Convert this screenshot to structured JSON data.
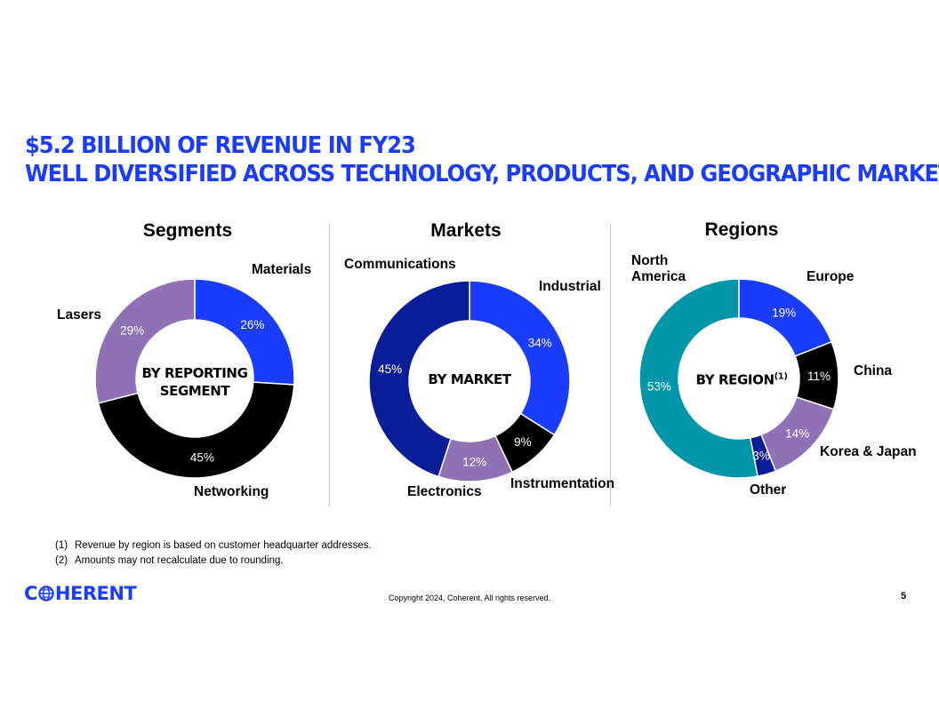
{
  "header": {
    "title_line1": "$5.2 BILLION OF REVENUE IN FY23",
    "title_line2": "WELL DIVERSIFIED ACROSS TECHNOLOGY, PRODUCTS, AND GEOGRAPHIC MARKETS"
  },
  "colors": {
    "brand_blue": "#1a3cff",
    "black": "#000000",
    "purple": "#8f72b5",
    "navy": "#0a1d99",
    "teal": "#0096a9"
  },
  "chart_data": [
    {
      "type": "pie",
      "title": "Segments",
      "center_label_line1": "BY REPORTING",
      "center_label_line2": "SEGMENT",
      "slices": [
        {
          "name": "Materials",
          "value": 26,
          "label": "26%",
          "color": "#1a3cff",
          "text_color": "#ffffff"
        },
        {
          "name": "Networking",
          "value": 45,
          "label": "45%",
          "color": "#000000",
          "text_color": "#ffffff"
        },
        {
          "name": "Lasers",
          "value": 29,
          "label": "29%",
          "color": "#8f72b5",
          "text_color": "#ffffff"
        }
      ]
    },
    {
      "type": "pie",
      "title": "Markets",
      "center_label_line1": "BY MARKET",
      "slices": [
        {
          "name": "Industrial",
          "value": 34,
          "label": "34%",
          "color": "#1a3cff",
          "text_color": "#ffffff"
        },
        {
          "name": "Instrumentation",
          "value": 9,
          "label": "9%",
          "color": "#000000",
          "text_color": "#ffffff"
        },
        {
          "name": "Electronics",
          "value": 12,
          "label": "12%",
          "color": "#8f72b5",
          "text_color": "#ffffff"
        },
        {
          "name": "Communications",
          "value": 45,
          "label": "45%",
          "color": "#0a1d99",
          "text_color": "#ffffff"
        }
      ]
    },
    {
      "type": "pie",
      "title": "Regions",
      "center_label_line1": "BY REGION",
      "center_label_sup": "(1)",
      "slices": [
        {
          "name": "Europe",
          "value": 19,
          "label": "19%",
          "color": "#1a3cff",
          "text_color": "#ffffff"
        },
        {
          "name": "China",
          "value": 11,
          "label": "11%",
          "color": "#000000",
          "text_color": "#ffffff"
        },
        {
          "name": "Korea & Japan",
          "value": 14,
          "label": "14%",
          "color": "#8f72b5",
          "text_color": "#ffffff"
        },
        {
          "name": "Other",
          "value": 3,
          "label": "3%",
          "color": "#0a1d99",
          "text_color": "#ffffff"
        },
        {
          "name": "North America",
          "value": 53,
          "label": "53%",
          "color": "#0096a9",
          "text_color": "#ffffff"
        }
      ]
    }
  ],
  "labels": {
    "materials": "Materials",
    "lasers": "Lasers",
    "networking": "Networking",
    "communications": "Communications",
    "industrial": "Industrial",
    "instrumentation": "Instrumentation",
    "electronics": "Electronics",
    "north_america_1": "North",
    "north_america_2": "America",
    "europe": "Europe",
    "china": "China",
    "korea_japan": "Korea & Japan",
    "other": "Other"
  },
  "footnotes": [
    {
      "num": "(1)",
      "text": "Revenue by region is based on customer headquarter addresses."
    },
    {
      "num": "(2)",
      "text": "Amounts may not recalculate due to rounding."
    }
  ],
  "footer": {
    "logo_part1": "C",
    "logo_part2": "HERENT",
    "copyright": "Copyright 2024, Coherent. All rights reserved.",
    "page_number": "5"
  }
}
